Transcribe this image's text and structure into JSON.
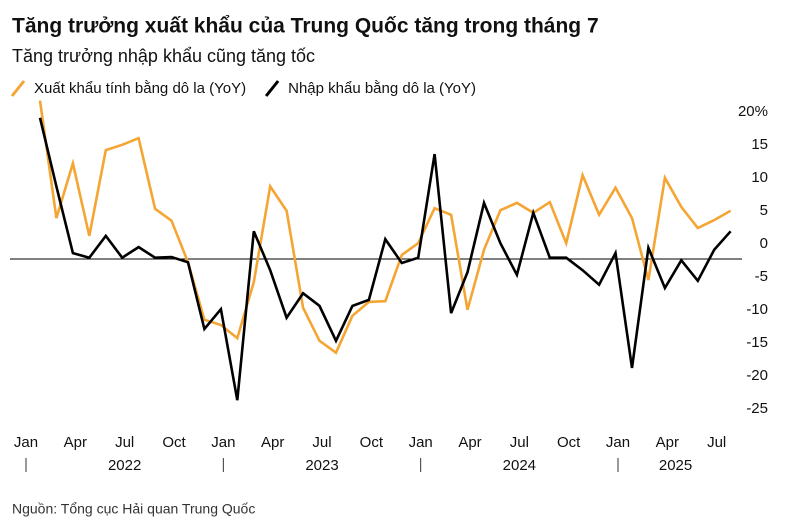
{
  "chart_data": {
    "type": "line",
    "title": "Tăng trưởng xuất khẩu của Trung Quốc tăng trong tháng 7",
    "subtitle": "Tăng trưởng nhập khẩu cũng tăng tốc",
    "source": "Nguồn: Tổng cục Hải quan Trung Quốc",
    "categories": [
      "Jan",
      null,
      null,
      "Apr",
      null,
      null,
      "Jul",
      null,
      null,
      "Oct",
      null,
      null,
      "Jan",
      null,
      null,
      "Apr",
      null,
      null,
      "Jul",
      null,
      null,
      "Oct",
      null,
      null,
      "Jan",
      null,
      null,
      "Apr",
      null,
      null,
      "Jul",
      null,
      null,
      "Oct",
      null,
      null,
      "Jan",
      null,
      null,
      "Apr",
      null,
      null,
      "Jul"
    ],
    "years": [
      "2022",
      "2023",
      "2024",
      "2025"
    ],
    "series": [
      {
        "name": "Xuất khẩu tính bằng dô la (YoY)",
        "color": "#f5a533",
        "values": [
          24,
          6.2,
          14.5,
          3.5,
          16.5,
          17.3,
          18.3,
          7.6,
          5.8,
          -0.5,
          -9.2,
          -10,
          -12,
          -3.5,
          11,
          7.3,
          -7.4,
          -12.4,
          -14.2,
          -8.6,
          -6.5,
          -6.4,
          0.6,
          2.4,
          7.7,
          6.7,
          -7.7,
          1.4,
          7.4,
          8.5,
          7,
          8.6,
          2.4,
          12.7,
          6.7,
          10.8,
          6.2,
          -3.2,
          12.3,
          7.9,
          4.7,
          5.9,
          7.3
        ]
      },
      {
        "name": "Nhập khẩu bằng dô la (YoY)",
        "color": "#000000",
        "values": [
          21.4,
          11,
          0.9,
          0.2,
          3.5,
          0.2,
          1.8,
          0.2,
          0.3,
          -0.5,
          -10.6,
          -7.6,
          -21.4,
          4.2,
          -1.7,
          -8.9,
          -5.2,
          -7.1,
          -12.4,
          -7.1,
          -6.2,
          3,
          -0.6,
          0.2,
          15.9,
          -8.2,
          -2,
          8.5,
          2.4,
          -2.4,
          7,
          0.2,
          0.2,
          -1.7,
          -3.9,
          0.9,
          -16.5,
          1.7,
          -4.4,
          -0.2,
          -3.3,
          1.4,
          4.2
        ]
      }
    ],
    "ylim": [
      -25,
      25
    ],
    "yticks": [
      {
        "value": 20,
        "label": "20%"
      },
      15,
      10,
      5,
      0,
      -5,
      -10,
      -15,
      -20,
      -25
    ],
    "grid": false
  }
}
